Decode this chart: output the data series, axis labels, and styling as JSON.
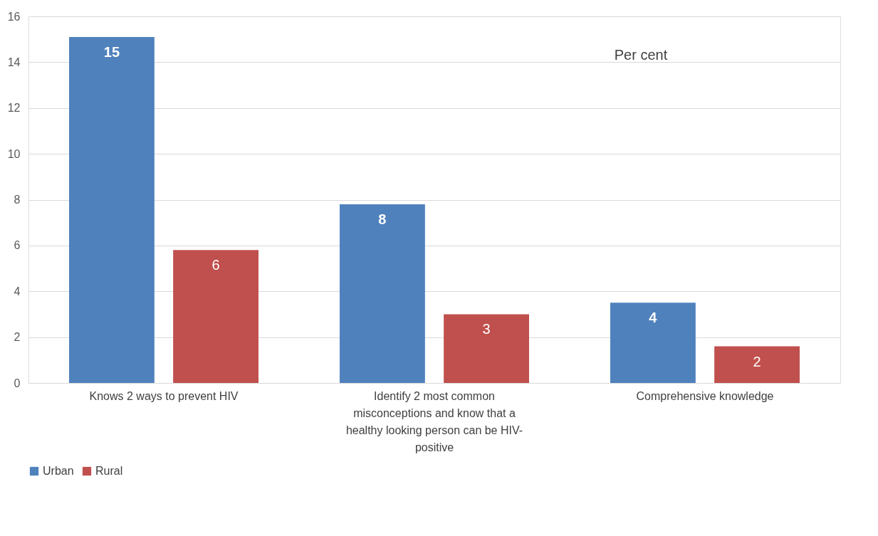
{
  "chart_data": {
    "type": "bar",
    "categories": [
      "Knows 2 ways to prevent HIV",
      "Identify 2 most common misconceptions and know that a healthy looking person can be HIV-positive",
      "Comprehensive knowledge"
    ],
    "series": [
      {
        "name": "Urban",
        "color": "#4f81bd",
        "values": [
          15.1,
          7.8,
          3.5
        ],
        "value_labels": [
          "15",
          "8",
          "4"
        ]
      },
      {
        "name": "Rural",
        "color": "#c0504d",
        "values": [
          5.8,
          3.0,
          1.6
        ],
        "value_labels": [
          "6",
          "3",
          "2"
        ]
      }
    ],
    "ylim": [
      0,
      16
    ],
    "yticks": [
      0,
      2,
      4,
      6,
      8,
      10,
      12,
      14,
      16
    ],
    "annotations": [
      "Per cent"
    ],
    "grid": "y",
    "legend": "bottom"
  }
}
